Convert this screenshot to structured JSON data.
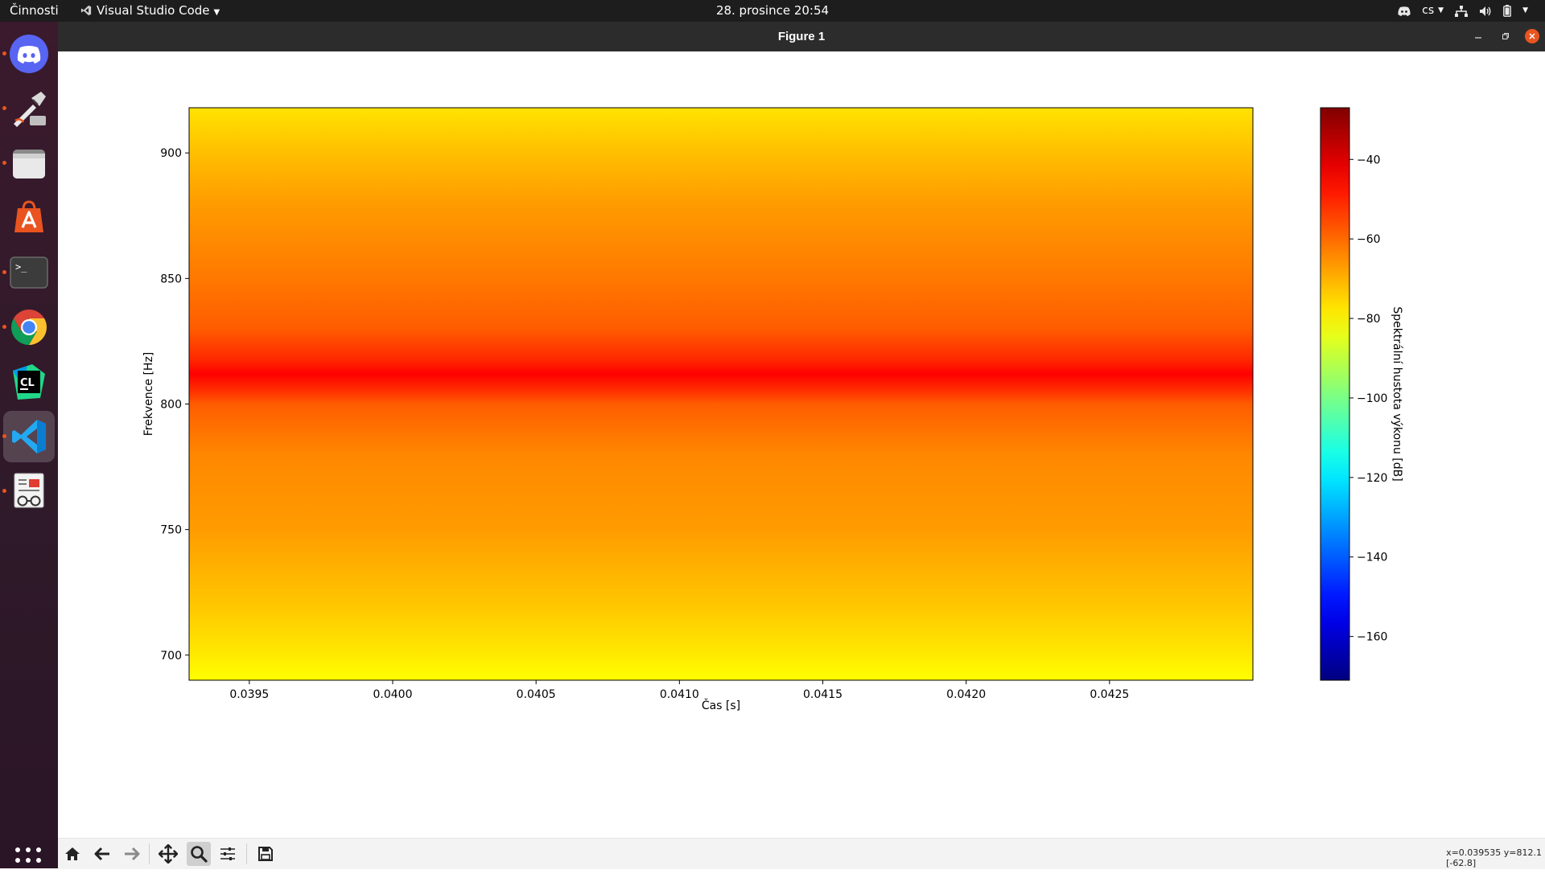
{
  "topbar": {
    "activities": "Činnosti",
    "app_name": "Visual Studio Code",
    "clock": "28. prosince  20:54",
    "language": "cs"
  },
  "dock": {
    "items": [
      {
        "name": "discord",
        "running": true
      },
      {
        "name": "inkscape",
        "running": true
      },
      {
        "name": "files",
        "running": true
      },
      {
        "name": "ubuntu-software",
        "running": false
      },
      {
        "name": "terminal",
        "running": true
      },
      {
        "name": "chrome",
        "running": true
      },
      {
        "name": "clion",
        "running": false
      },
      {
        "name": "vscode",
        "running": true,
        "active": true
      },
      {
        "name": "document-viewer",
        "running": true
      }
    ]
  },
  "window": {
    "title": "Figure 1"
  },
  "figure": {
    "colormap": "jet",
    "chart_data": {
      "type": "heatmap",
      "title": "",
      "xlabel": "Čas [s]",
      "ylabel": "Frekvence [Hz]",
      "xlim": [
        0.03929,
        0.043
      ],
      "ylim": [
        690,
        918
      ],
      "x_ticks": [
        "0.0395",
        "0.0400",
        "0.0405",
        "0.0410",
        "0.0415",
        "0.0420",
        "0.0425"
      ],
      "x_tick_values": [
        0.0395,
        0.04,
        0.0405,
        0.041,
        0.0415,
        0.042,
        0.0425
      ],
      "y_ticks": [
        "700",
        "750",
        "800",
        "850",
        "900"
      ],
      "y_tick_values": [
        700,
        750,
        800,
        850,
        900
      ],
      "profile_hz": [
        690,
        700,
        720,
        750,
        780,
        800,
        805,
        812,
        818,
        830,
        850,
        880,
        900,
        918
      ],
      "profile_db": [
        -81,
        -78,
        -73,
        -67,
        -64,
        -58,
        -52,
        -45,
        -51,
        -58,
        -62,
        -67,
        -72,
        -77
      ],
      "colorbar": {
        "label": "Spektrální hustota výkonu [dB]",
        "vmin": -171,
        "vmax": -27,
        "ticks": [
          "−40",
          "−60",
          "−80",
          "−100",
          "−120",
          "−140",
          "−160"
        ],
        "tick_values": [
          -40,
          -60,
          -80,
          -100,
          -120,
          -140,
          -160
        ]
      }
    }
  },
  "toolbar": {
    "tools": [
      "home",
      "back",
      "forward",
      "pan",
      "zoom",
      "configure",
      "save"
    ],
    "active": "zoom",
    "coords_line1": "x=0.039535 y=812.1",
    "coords_line2": "[-62.8]"
  }
}
